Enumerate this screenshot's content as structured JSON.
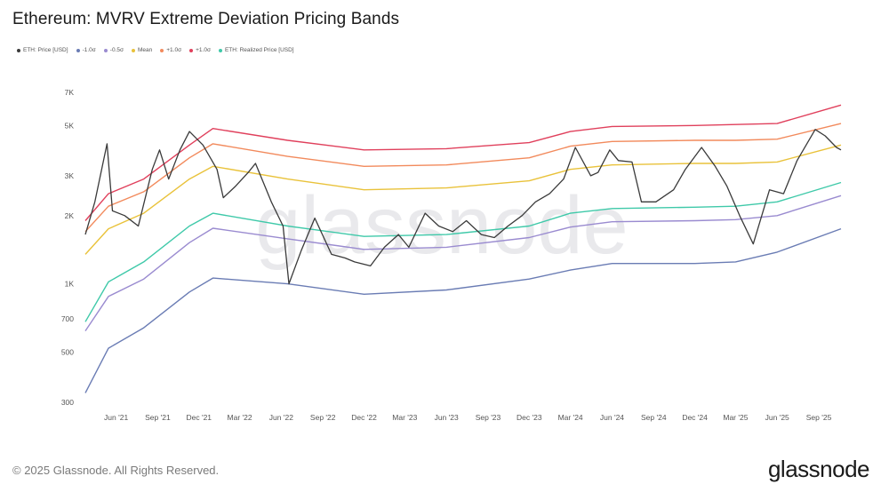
{
  "title": "Ethereum: MVRV Extreme Deviation Pricing Bands",
  "footer": {
    "copyright": "© 2025 Glassnode. All Rights Reserved.",
    "brand": "glassnode"
  },
  "watermark": "glassnode",
  "chart_data": {
    "type": "line",
    "title": "Ethereum: MVRV Extreme Deviation Pricing Bands",
    "xlabel": "",
    "ylabel": "",
    "y_scale": "log",
    "ylim": [
      300,
      7000
    ],
    "xlim": [
      "2021-03-25",
      "2025-10-20"
    ],
    "grid": false,
    "legend_position": "top-left",
    "y_ticks": [
      {
        "value": 300,
        "label": "300"
      },
      {
        "value": 500,
        "label": "500"
      },
      {
        "value": 700,
        "label": "700"
      },
      {
        "value": 1000,
        "label": "1K"
      },
      {
        "value": 2000,
        "label": "2K"
      },
      {
        "value": 3000,
        "label": "3K"
      },
      {
        "value": 5000,
        "label": "5K"
      },
      {
        "value": 7000,
        "label": "7K"
      }
    ],
    "x_ticks": [
      {
        "value": "2021-06-01",
        "label": "Jun '21"
      },
      {
        "value": "2021-09-01",
        "label": "Sep '21"
      },
      {
        "value": "2021-12-01",
        "label": "Dec '21"
      },
      {
        "value": "2022-03-01",
        "label": "Mar '22"
      },
      {
        "value": "2022-06-01",
        "label": "Jun '22"
      },
      {
        "value": "2022-09-01",
        "label": "Sep '22"
      },
      {
        "value": "2022-12-01",
        "label": "Dec '22"
      },
      {
        "value": "2023-03-01",
        "label": "Mar '23"
      },
      {
        "value": "2023-06-01",
        "label": "Jun '23"
      },
      {
        "value": "2023-09-01",
        "label": "Sep '23"
      },
      {
        "value": "2023-12-01",
        "label": "Dec '23"
      },
      {
        "value": "2024-03-01",
        "label": "Mar '24"
      },
      {
        "value": "2024-06-01",
        "label": "Jun '24"
      },
      {
        "value": "2024-09-01",
        "label": "Sep '24"
      },
      {
        "value": "2024-12-01",
        "label": "Dec '24"
      },
      {
        "value": "2025-03-01",
        "label": "Mar '25"
      },
      {
        "value": "2025-06-01",
        "label": "Jun '25"
      },
      {
        "value": "2025-09-01",
        "label": "Sep '25"
      }
    ],
    "series": [
      {
        "name": "ETH: Price [USD]",
        "color": "#3a3a3a",
        "x": [
          "2021-03-25",
          "2021-04-15",
          "2021-05-12",
          "2021-05-24",
          "2021-06-20",
          "2021-07-20",
          "2021-08-20",
          "2021-09-05",
          "2021-09-25",
          "2021-10-20",
          "2021-11-10",
          "2021-12-10",
          "2022-01-10",
          "2022-01-24",
          "2022-02-20",
          "2022-03-20",
          "2022-04-05",
          "2022-05-10",
          "2022-06-05",
          "2022-06-18",
          "2022-07-15",
          "2022-08-14",
          "2022-09-20",
          "2022-10-20",
          "2022-11-10",
          "2022-12-15",
          "2023-01-15",
          "2023-02-15",
          "2023-03-10",
          "2023-04-15",
          "2023-05-15",
          "2023-06-15",
          "2023-07-15",
          "2023-08-17",
          "2023-09-15",
          "2023-10-15",
          "2023-11-15",
          "2023-12-15",
          "2024-01-15",
          "2024-02-15",
          "2024-03-12",
          "2024-04-15",
          "2024-05-01",
          "2024-05-27",
          "2024-06-15",
          "2024-07-15",
          "2024-08-05",
          "2024-09-06",
          "2024-10-15",
          "2024-11-10",
          "2024-12-16",
          "2025-01-15",
          "2025-02-10",
          "2025-03-10",
          "2025-04-09",
          "2025-05-15",
          "2025-06-15",
          "2025-07-15",
          "2025-08-24",
          "2025-09-15",
          "2025-10-10",
          "2025-10-20"
        ],
        "values": [
          1650,
          2300,
          4150,
          2100,
          2000,
          1800,
          3200,
          3900,
          2900,
          3900,
          4700,
          4100,
          3200,
          2400,
          2700,
          3100,
          3400,
          2300,
          1800,
          1000,
          1400,
          1950,
          1350,
          1300,
          1250,
          1200,
          1450,
          1650,
          1450,
          2050,
          1800,
          1700,
          1900,
          1650,
          1600,
          1800,
          2000,
          2300,
          2500,
          2900,
          4000,
          3000,
          3100,
          3900,
          3500,
          3450,
          2300,
          2300,
          2600,
          3200,
          4000,
          3300,
          2700,
          2000,
          1500,
          2600,
          2500,
          3500,
          4800,
          4500,
          4000,
          3900
        ]
      },
      {
        "name": "-1.0σ",
        "color": "#6a7cb4",
        "x": [
          "2021-03-25",
          "2021-05-15",
          "2021-08-01",
          "2021-11-10",
          "2022-01-01",
          "2022-06-15",
          "2022-12-01",
          "2023-06-01",
          "2023-12-01",
          "2024-03-01",
          "2024-06-01",
          "2024-12-01",
          "2025-03-01",
          "2025-06-01",
          "2025-10-20"
        ],
        "values": [
          330,
          520,
          640,
          920,
          1060,
          1000,
          900,
          940,
          1050,
          1150,
          1230,
          1230,
          1250,
          1380,
          1750
        ]
      },
      {
        "name": "-0.5σ",
        "color": "#9a8bd0",
        "x": [
          "2021-03-25",
          "2021-05-15",
          "2021-08-01",
          "2021-11-10",
          "2022-01-01",
          "2022-06-15",
          "2022-12-01",
          "2023-06-01",
          "2023-12-01",
          "2024-03-01",
          "2024-06-01",
          "2024-12-01",
          "2025-03-01",
          "2025-06-01",
          "2025-10-20"
        ],
        "values": [
          620,
          880,
          1050,
          1520,
          1760,
          1580,
          1420,
          1450,
          1600,
          1780,
          1880,
          1900,
          1920,
          2000,
          2450
        ]
      },
      {
        "name": "Mean",
        "color": "#e9c23a",
        "x": [
          "2021-03-25",
          "2021-05-15",
          "2021-08-01",
          "2021-11-10",
          "2022-01-01",
          "2022-06-15",
          "2022-12-01",
          "2023-06-01",
          "2023-12-01",
          "2024-03-01",
          "2024-06-01",
          "2024-12-01",
          "2025-03-01",
          "2025-06-01",
          "2025-10-20"
        ],
        "values": [
          1350,
          1750,
          2050,
          2900,
          3300,
          2900,
          2600,
          2650,
          2850,
          3200,
          3350,
          3400,
          3400,
          3450,
          4100
        ]
      },
      {
        "name": "+1.0σ",
        "color": "#f28a5c",
        "x": [
          "2021-03-25",
          "2021-05-15",
          "2021-08-01",
          "2021-11-10",
          "2022-01-01",
          "2022-06-15",
          "2022-12-01",
          "2023-06-01",
          "2023-12-01",
          "2024-03-01",
          "2024-06-01",
          "2024-12-01",
          "2025-03-01",
          "2025-06-01",
          "2025-10-20"
        ],
        "values": [
          1700,
          2200,
          2550,
          3600,
          4150,
          3650,
          3300,
          3350,
          3600,
          4050,
          4250,
          4300,
          4300,
          4350,
          5100
        ]
      },
      {
        "name": "+1.0σ",
        "color": "#e0405c",
        "x": [
          "2021-03-25",
          "2021-05-15",
          "2021-08-01",
          "2021-11-10",
          "2022-01-01",
          "2022-06-15",
          "2022-12-01",
          "2023-06-01",
          "2023-12-01",
          "2024-03-01",
          "2024-06-01",
          "2024-12-01",
          "2025-03-01",
          "2025-06-01",
          "2025-10-20"
        ],
        "values": [
          1900,
          2500,
          2900,
          4100,
          4850,
          4300,
          3900,
          3950,
          4200,
          4700,
          4950,
          5000,
          5050,
          5100,
          6150
        ]
      },
      {
        "name": "ETH: Realized Price [USD]",
        "color": "#3fc9a9",
        "x": [
          "2021-03-25",
          "2021-05-15",
          "2021-08-01",
          "2021-11-10",
          "2022-01-01",
          "2022-06-15",
          "2022-12-01",
          "2023-06-01",
          "2023-12-01",
          "2024-03-01",
          "2024-06-01",
          "2024-12-01",
          "2025-03-01",
          "2025-06-01",
          "2025-10-20"
        ],
        "values": [
          680,
          1020,
          1250,
          1800,
          2050,
          1800,
          1620,
          1650,
          1800,
          2050,
          2150,
          2180,
          2200,
          2300,
          2800
        ]
      }
    ]
  }
}
